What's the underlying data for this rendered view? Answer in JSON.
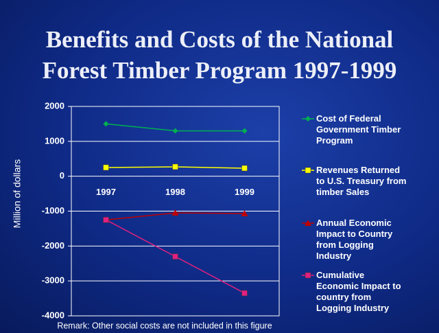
{
  "chart_data": {
    "type": "line",
    "title": [
      "Benefits and Costs of the National",
      "Forest Timber Program 1997-1999"
    ],
    "y_label": "Million of dollars",
    "note": "Remark: Other social costs are not included in this figure",
    "categories": [
      "1997",
      "1998",
      "1999"
    ],
    "series": [
      {
        "name": "Cost of Federal Government Timber Program",
        "color": "#00b050",
        "marker": "diamond",
        "values": [
          1500,
          1300,
          1300
        ]
      },
      {
        "name": "Revenues Returned to U.S. Treasury from timber Sales",
        "color": "#ffff00",
        "marker": "square",
        "values": [
          250,
          270,
          230
        ]
      },
      {
        "name": "Annual Economic Impact to Country from Logging Industry",
        "color": "#c00000",
        "marker": "triangle",
        "values": [
          -1250,
          -1050,
          -1070
        ]
      },
      {
        "name": "Cumulative Economic Impact to country from Logging Industry",
        "color": "#e0207f",
        "marker": "square",
        "values": [
          -1250,
          -2300,
          -3350
        ]
      }
    ],
    "ylim": [
      -4000,
      2000
    ],
    "yticks": [
      -4000,
      -3000,
      -2000,
      -1000,
      0,
      1000,
      2000
    ],
    "grid": true,
    "legend": "right"
  }
}
